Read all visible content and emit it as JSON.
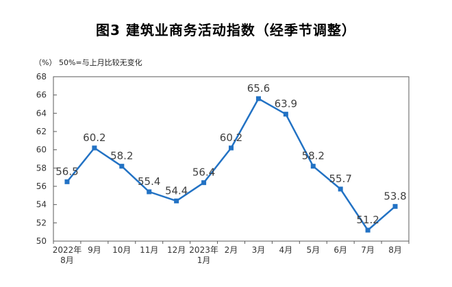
{
  "chart_data": {
    "type": "line",
    "title": "图3 建筑业商务活动指数（经季节调整）",
    "subtitle": "（%） 50%=与上月比较无变化",
    "categories": [
      "2022年\n8月",
      "9月",
      "10月",
      "11月",
      "12月",
      "2023年\n1月",
      "2月",
      "3月",
      "4月",
      "5月",
      "6月",
      "7月",
      "8月"
    ],
    "values": [
      56.5,
      60.2,
      58.2,
      55.4,
      54.4,
      56.4,
      60.2,
      65.6,
      63.9,
      58.2,
      55.7,
      51.2,
      53.8
    ],
    "ylim": [
      50,
      68
    ],
    "ytick_step": 2,
    "ytick_labels": [
      "50",
      "52",
      "54",
      "56",
      "58",
      "60",
      "62",
      "64",
      "66",
      "68"
    ],
    "grid": false,
    "legend": "none",
    "line_color": "#2272C4",
    "marker_shape": "square",
    "data_label_color": "#3f3f3f",
    "axis_text_color": "#333333",
    "axis_line_color": "#595959"
  }
}
